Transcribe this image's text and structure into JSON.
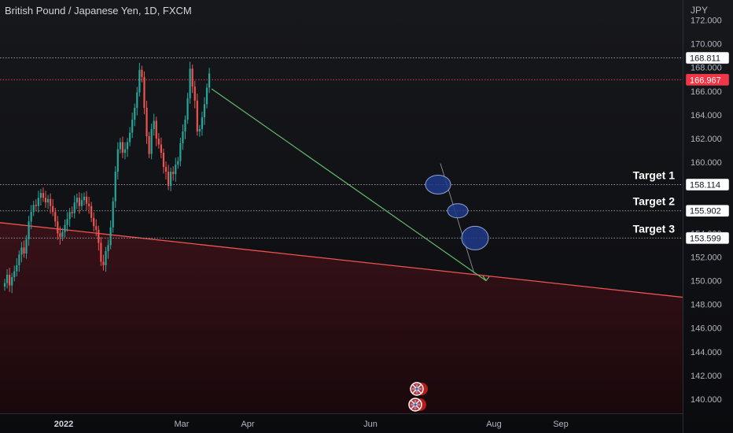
{
  "chart_data": {
    "type": "candlestick",
    "title": "British Pound / Japanese Yen, 1D, FXCM",
    "unit": "JPY",
    "ylim": [
      138.8,
      173.7
    ],
    "y_ticks": [
      "172.000",
      "170.000",
      "168.000",
      "166.000",
      "164.000",
      "162.000",
      "160.000",
      "158.000",
      "156.000",
      "154.000",
      "152.000",
      "150.000",
      "148.000",
      "146.000",
      "144.000",
      "142.000",
      "140.000"
    ],
    "x_ticks": [
      {
        "label": "2022",
        "bold": true
      },
      {
        "label": "Mar",
        "bold": false
      },
      {
        "label": "Apr",
        "bold": false
      },
      {
        "label": "Jun",
        "bold": false
      },
      {
        "label": "Aug",
        "bold": false
      },
      {
        "label": "Sep",
        "bold": false
      }
    ],
    "current_price": "166.967",
    "levels": [
      {
        "name": "high",
        "value": 168.811,
        "label": "168.811"
      },
      {
        "name": "target-1",
        "value": 158.114,
        "label": "158.114",
        "text": "Target 1"
      },
      {
        "name": "target-2",
        "value": 155.902,
        "label": "155.902",
        "text": "Target 2"
      },
      {
        "name": "target-3",
        "value": 153.599,
        "label": "153.599",
        "text": "Target 3"
      }
    ],
    "trendline": {
      "start": 154.9,
      "end": 148.6
    },
    "projection": {
      "from": 166.2,
      "to": 150.0
    },
    "path": [
      149.8,
      150.5,
      149.6,
      150.3,
      150.8,
      151.3,
      152.2,
      152.8,
      152.3,
      153.5,
      155.0,
      155.8,
      156.4,
      156.3,
      157.0,
      157.4,
      157.0,
      156.6,
      156.9,
      156.3,
      155.8,
      155.0,
      154.0,
      153.7,
      154.1,
      154.7,
      155.2,
      155.8,
      155.7,
      156.6,
      157.0,
      156.3,
      156.8,
      157.1,
      156.5,
      156.3,
      155.3,
      154.6,
      154.3,
      153.2,
      151.6,
      151.3,
      152.5,
      153.0,
      154.5,
      156.7,
      159.2,
      161.1,
      161.7,
      160.8,
      161.1,
      161.7,
      162.5,
      163.6,
      164.6,
      165.9,
      167.8,
      167.2,
      164.6,
      162.2,
      160.7,
      162.8,
      163.5,
      162.0,
      161.5,
      160.8,
      159.6,
      159.2,
      158.0,
      159.2,
      159.0,
      159.8,
      160.1,
      161.6,
      162.6,
      163.6,
      165.4,
      167.9,
      166.4,
      165.2,
      162.6,
      162.8,
      163.8,
      164.9,
      166.3,
      167.5
    ],
    "colors": {
      "up": "#26a69a",
      "down": "#ef5350",
      "trendline": "#ef5350",
      "projection": "#66bb6a",
      "target_circle": "#1e3a8a",
      "price_label": "#f23645"
    }
  },
  "legend_badges": [
    {
      "name": "gbp-flag-badge-1"
    },
    {
      "name": "gbp-flag-badge-2"
    }
  ]
}
